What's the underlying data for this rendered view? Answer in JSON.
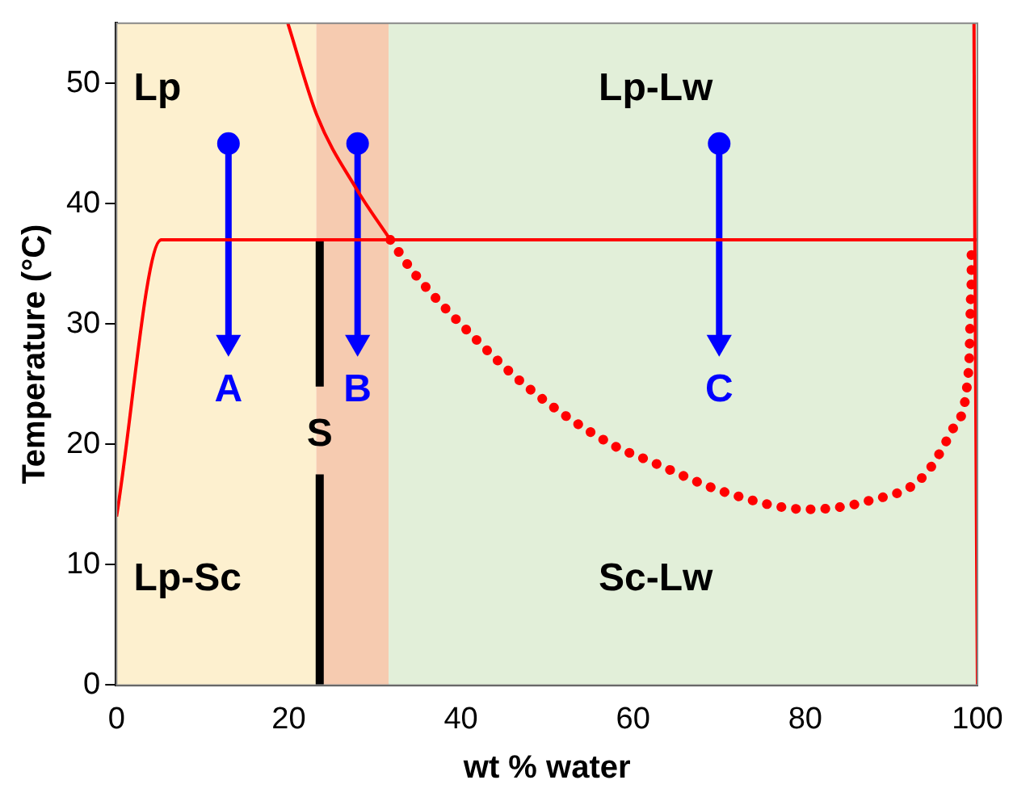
{
  "chart_data": {
    "type": "line",
    "xlabel": "wt % water",
    "ylabel": "Temperature (°C)",
    "xlim": [
      0,
      100
    ],
    "xticks": [
      0,
      20,
      40,
      60,
      80,
      100
    ],
    "ylim": [
      0,
      55
    ],
    "yticks": [
      0,
      10,
      20,
      30,
      40,
      50
    ],
    "grid": false,
    "legend": false,
    "bands": [
      {
        "axis": "x",
        "from": 0,
        "to": 23.2,
        "color": "#fdf0cf"
      },
      {
        "axis": "x",
        "from": 23.2,
        "to": 31.6,
        "color": "#f6cbb0"
      },
      {
        "axis": "x",
        "from": 31.6,
        "to": 100,
        "color": "#e2efd9"
      }
    ],
    "series": [
      {
        "color": "#ff0000",
        "x": [
          19.9,
          23.3,
          27.9,
          31.8
        ],
        "values": [
          55,
          47.3,
          41.2,
          37
        ]
      },
      {
        "color": "#ff0000",
        "x": [
          0,
          5.2,
          100
        ],
        "values": [
          14,
          37,
          37
        ]
      },
      {
        "color": "#ff0000",
        "x": [
          99.6,
          99.7,
          100
        ],
        "values": [
          55,
          37,
          0
        ]
      },
      {
        "color": "#ff0000",
        "line_style": "dotted",
        "x": [
          31.8,
          34.6,
          41.1,
          48,
          57.5,
          62,
          70.8,
          80.3,
          87.3,
          93.8,
          97.3,
          99,
          99.3,
          99.3
        ],
        "values": [
          37,
          34.2,
          29.2,
          24.6,
          20,
          18.6,
          16,
          14.6,
          15.3,
          17.4,
          21.5,
          26.4,
          33.3,
          35.9
        ]
      },
      {
        "name": "S",
        "color": "#000000",
        "x": [
          23.6,
          23.6
        ],
        "values": [
          37,
          24.8
        ]
      },
      {
        "color": "#000000",
        "x": [
          23.6,
          23.6
        ],
        "values": [
          17.5,
          0
        ]
      },
      {
        "name": "A",
        "color": "#0000ff",
        "marker": "circle",
        "x": [
          13,
          13
        ],
        "values": [
          45,
          28.5
        ]
      },
      {
        "name": "B",
        "color": "#0000ff",
        "marker": "circle",
        "x": [
          28,
          28
        ],
        "values": [
          45,
          28.5
        ]
      },
      {
        "name": "C",
        "color": "#0000ff",
        "marker": "circle",
        "x": [
          70,
          70
        ],
        "values": [
          45,
          28.5
        ]
      }
    ],
    "annotations": [
      "Lp",
      "Lp-Lw",
      "Lp-Sc",
      "Sc-Lw"
    ]
  }
}
